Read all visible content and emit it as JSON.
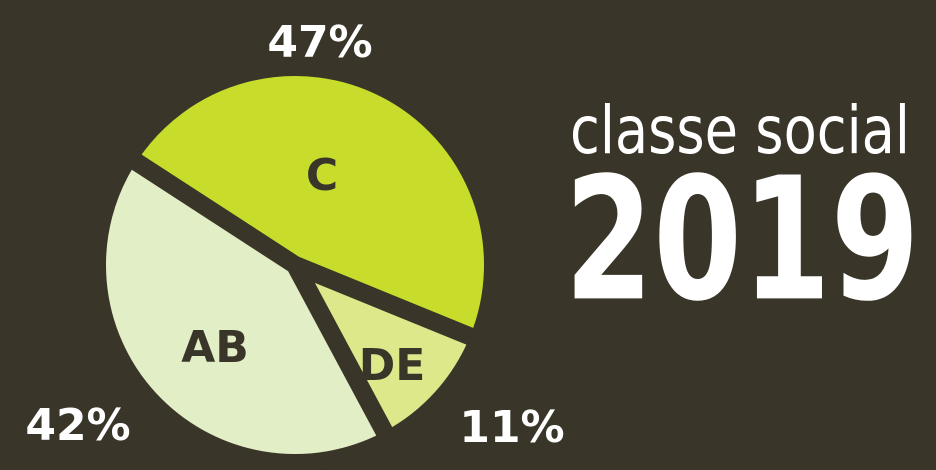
{
  "chart_data": {
    "type": "pie",
    "title": "classe social",
    "subtitle": "2019",
    "categories": [
      "C",
      "DE",
      "AB"
    ],
    "values": [
      47,
      11,
      42
    ],
    "value_labels": [
      "47%",
      "11%",
      "42%"
    ],
    "colors": [
      "#c8dc2c",
      "#dce88a",
      "#e2eec6"
    ]
  }
}
